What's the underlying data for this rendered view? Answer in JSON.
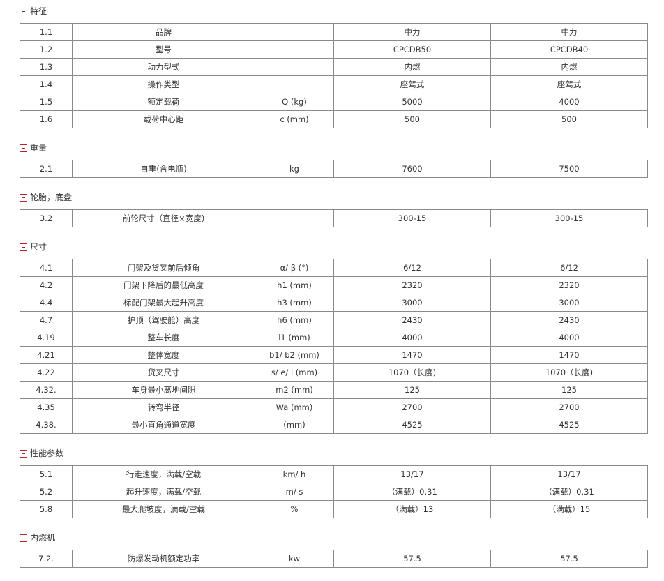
{
  "accent_color": "#b3262d",
  "toggle_icon": "collapse-minus-icon",
  "sections": [
    {
      "title": "特征",
      "rows": [
        [
          "1.1",
          "品牌",
          "",
          "中力",
          "中力"
        ],
        [
          "1.2",
          "型号",
          "",
          "CPCDB50",
          "CPCDB40"
        ],
        [
          "1.3",
          "动力型式",
          "",
          "内燃",
          "内燃"
        ],
        [
          "1.4",
          "操作类型",
          "",
          "座驾式",
          "座驾式"
        ],
        [
          "1.5",
          "额定载荷",
          "Q (kg)",
          "5000",
          "4000"
        ],
        [
          "1.6",
          "载荷中心距",
          "c (mm)",
          "500",
          "500"
        ]
      ]
    },
    {
      "title": "重量",
      "rows": [
        [
          "2.1",
          "自重(含电瓶)",
          "kg",
          "7600",
          "7500"
        ]
      ]
    },
    {
      "title": "轮胎，底盘",
      "rows": [
        [
          "3.2",
          "前轮尺寸（直径×宽度)",
          "",
          "300-15",
          "300-15"
        ]
      ]
    },
    {
      "title": "尺寸",
      "rows": [
        [
          "4.1",
          "门架及货叉前后倾角",
          "α/ β (°)",
          "6/12",
          "6/12"
        ],
        [
          "4.2",
          "门架下降后的最低高度",
          "h1 (mm)",
          "2320",
          "2320"
        ],
        [
          "4.4",
          "标配门架最大起升高度",
          "h3 (mm)",
          "3000",
          "3000"
        ],
        [
          "4.7",
          "护顶（驾驶舱）高度",
          "h6 (mm)",
          "2430",
          "2430"
        ],
        [
          "4.19",
          "整车长度",
          "l1 (mm)",
          "4000",
          "4000"
        ],
        [
          "4.21",
          "整体宽度",
          "b1/ b2 (mm)",
          "1470",
          "1470"
        ],
        [
          "4.22",
          "货叉尺寸",
          "s/ e/ l (mm)",
          "1070（长度)",
          "1070（长度)"
        ],
        [
          "4.32.",
          "车身最小离地间隙",
          "m2 (mm)",
          "125",
          "125"
        ],
        [
          "4.35",
          "转弯半径",
          "Wa (mm)",
          "2700",
          "2700"
        ],
        [
          "4.38.",
          "最小直角通道宽度",
          "(mm)",
          "4525",
          "4525"
        ]
      ]
    },
    {
      "title": "性能参数",
      "rows": [
        [
          "5.1",
          "行走速度，满载/空载",
          "km/ h",
          "13/17",
          "13/17"
        ],
        [
          "5.2",
          "起升速度，满载/空载",
          "m/ s",
          "（满载）0.31",
          "（满载）0.31"
        ],
        [
          "5.8",
          "最大爬坡度，满载/空载",
          "%",
          "（满载）13",
          "（满载）15"
        ]
      ]
    },
    {
      "title": "内燃机",
      "rows": [
        [
          "7.2.",
          "防爆发动机额定功率",
          "kw",
          "57.5",
          "57.5"
        ]
      ]
    }
  ]
}
